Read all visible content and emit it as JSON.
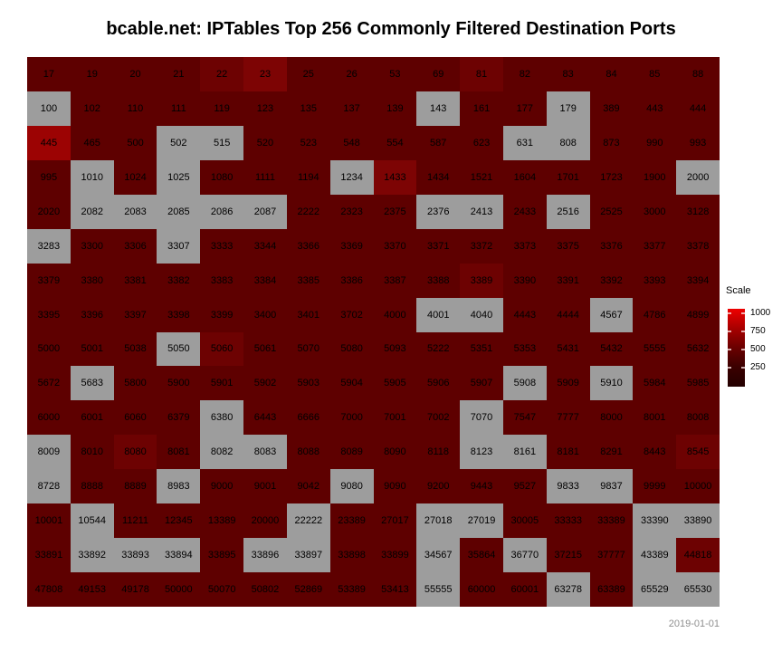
{
  "title": "bcable.net: IPTables Top 256 Commonly Filtered Destination Ports",
  "footer": {
    "date": "2019-01-01"
  },
  "legend": {
    "title": "Scale",
    "ticks": [
      "1000",
      "750",
      "500",
      "250"
    ],
    "gradient_stops": [
      "#ee0000",
      "#a80000",
      "#6a0000",
      "#3a0000",
      "#230000"
    ]
  },
  "colors": {
    "g": "#9d9d9d",
    "d": "#5e0000",
    "m": "#6d0202",
    "h": "#7d0404",
    "v": "#9c0303"
  },
  "chart_data": {
    "type": "heatmap",
    "title": "bcable.net: IPTables Top 256 Commonly Filtered Destination Ports",
    "grid": [
      16,
      16
    ],
    "scale_legend": {
      "title": "Scale",
      "tick_values": [
        1000,
        750,
        500,
        250
      ]
    },
    "color_level_meaning": {
      "g": "gray tile (no scale color)",
      "d": "dark red (low count ~100-250)",
      "m": "medium dark red (~300)",
      "h": "brighter red (~450)",
      "v": "bright red (~1000)"
    },
    "cells": [
      [
        "17",
        "d"
      ],
      [
        "19",
        "d"
      ],
      [
        "20",
        "d"
      ],
      [
        "21",
        "d"
      ],
      [
        "22",
        "m"
      ],
      [
        "23",
        "h"
      ],
      [
        "25",
        "d"
      ],
      [
        "26",
        "d"
      ],
      [
        "53",
        "d"
      ],
      [
        "69",
        "d"
      ],
      [
        "81",
        "m"
      ],
      [
        "82",
        "d"
      ],
      [
        "83",
        "d"
      ],
      [
        "84",
        "d"
      ],
      [
        "85",
        "d"
      ],
      [
        "88",
        "d"
      ],
      [
        "100",
        "g"
      ],
      [
        "102",
        "d"
      ],
      [
        "110",
        "d"
      ],
      [
        "111",
        "d"
      ],
      [
        "119",
        "d"
      ],
      [
        "123",
        "d"
      ],
      [
        "135",
        "d"
      ],
      [
        "137",
        "d"
      ],
      [
        "139",
        "d"
      ],
      [
        "143",
        "g"
      ],
      [
        "161",
        "d"
      ],
      [
        "177",
        "d"
      ],
      [
        "179",
        "g"
      ],
      [
        "389",
        "d"
      ],
      [
        "443",
        "d"
      ],
      [
        "444",
        "d"
      ],
      [
        "445",
        "v"
      ],
      [
        "465",
        "d"
      ],
      [
        "500",
        "d"
      ],
      [
        "502",
        "g"
      ],
      [
        "515",
        "g"
      ],
      [
        "520",
        "d"
      ],
      [
        "523",
        "d"
      ],
      [
        "548",
        "d"
      ],
      [
        "554",
        "d"
      ],
      [
        "587",
        "d"
      ],
      [
        "623",
        "d"
      ],
      [
        "631",
        "g"
      ],
      [
        "808",
        "g"
      ],
      [
        "873",
        "d"
      ],
      [
        "990",
        "d"
      ],
      [
        "993",
        "d"
      ],
      [
        "995",
        "d"
      ],
      [
        "1010",
        "g"
      ],
      [
        "1024",
        "d"
      ],
      [
        "1025",
        "g"
      ],
      [
        "1080",
        "d"
      ],
      [
        "1111",
        "d"
      ],
      [
        "1194",
        "d"
      ],
      [
        "1234",
        "g"
      ],
      [
        "1433",
        "h"
      ],
      [
        "1434",
        "d"
      ],
      [
        "1521",
        "d"
      ],
      [
        "1604",
        "d"
      ],
      [
        "1701",
        "d"
      ],
      [
        "1723",
        "d"
      ],
      [
        "1900",
        "d"
      ],
      [
        "2000",
        "g"
      ],
      [
        "2020",
        "d"
      ],
      [
        "2082",
        "g"
      ],
      [
        "2083",
        "g"
      ],
      [
        "2085",
        "g"
      ],
      [
        "2086",
        "g"
      ],
      [
        "2087",
        "g"
      ],
      [
        "2222",
        "d"
      ],
      [
        "2323",
        "d"
      ],
      [
        "2375",
        "d"
      ],
      [
        "2376",
        "g"
      ],
      [
        "2413",
        "g"
      ],
      [
        "2433",
        "d"
      ],
      [
        "2516",
        "g"
      ],
      [
        "2525",
        "d"
      ],
      [
        "3000",
        "d"
      ],
      [
        "3128",
        "d"
      ],
      [
        "3283",
        "g"
      ],
      [
        "3300",
        "d"
      ],
      [
        "3306",
        "d"
      ],
      [
        "3307",
        "g"
      ],
      [
        "3333",
        "d"
      ],
      [
        "3344",
        "d"
      ],
      [
        "3366",
        "d"
      ],
      [
        "3369",
        "d"
      ],
      [
        "3370",
        "d"
      ],
      [
        "3371",
        "d"
      ],
      [
        "3372",
        "d"
      ],
      [
        "3373",
        "d"
      ],
      [
        "3375",
        "d"
      ],
      [
        "3376",
        "d"
      ],
      [
        "3377",
        "d"
      ],
      [
        "3378",
        "d"
      ],
      [
        "3379",
        "d"
      ],
      [
        "3380",
        "d"
      ],
      [
        "3381",
        "d"
      ],
      [
        "3382",
        "d"
      ],
      [
        "3383",
        "d"
      ],
      [
        "3384",
        "d"
      ],
      [
        "3385",
        "d"
      ],
      [
        "3386",
        "d"
      ],
      [
        "3387",
        "d"
      ],
      [
        "3388",
        "d"
      ],
      [
        "3389",
        "m"
      ],
      [
        "3390",
        "d"
      ],
      [
        "3391",
        "d"
      ],
      [
        "3392",
        "d"
      ],
      [
        "3393",
        "d"
      ],
      [
        "3394",
        "d"
      ],
      [
        "3395",
        "d"
      ],
      [
        "3396",
        "d"
      ],
      [
        "3397",
        "d"
      ],
      [
        "3398",
        "d"
      ],
      [
        "3399",
        "d"
      ],
      [
        "3400",
        "d"
      ],
      [
        "3401",
        "d"
      ],
      [
        "3702",
        "d"
      ],
      [
        "4000",
        "d"
      ],
      [
        "4001",
        "g"
      ],
      [
        "4040",
        "g"
      ],
      [
        "4443",
        "d"
      ],
      [
        "4444",
        "d"
      ],
      [
        "4567",
        "g"
      ],
      [
        "4786",
        "d"
      ],
      [
        "4899",
        "d"
      ],
      [
        "5000",
        "d"
      ],
      [
        "5001",
        "d"
      ],
      [
        "5038",
        "d"
      ],
      [
        "5050",
        "g"
      ],
      [
        "5060",
        "m"
      ],
      [
        "5061",
        "d"
      ],
      [
        "5070",
        "d"
      ],
      [
        "5080",
        "d"
      ],
      [
        "5093",
        "d"
      ],
      [
        "5222",
        "d"
      ],
      [
        "5351",
        "d"
      ],
      [
        "5353",
        "d"
      ],
      [
        "5431",
        "d"
      ],
      [
        "5432",
        "d"
      ],
      [
        "5555",
        "d"
      ],
      [
        "5632",
        "d"
      ],
      [
        "5672",
        "d"
      ],
      [
        "5683",
        "g"
      ],
      [
        "5800",
        "d"
      ],
      [
        "5900",
        "d"
      ],
      [
        "5901",
        "d"
      ],
      [
        "5902",
        "d"
      ],
      [
        "5903",
        "d"
      ],
      [
        "5904",
        "d"
      ],
      [
        "5905",
        "d"
      ],
      [
        "5906",
        "d"
      ],
      [
        "5907",
        "d"
      ],
      [
        "5908",
        "g"
      ],
      [
        "5909",
        "d"
      ],
      [
        "5910",
        "g"
      ],
      [
        "5984",
        "d"
      ],
      [
        "5985",
        "d"
      ],
      [
        "6000",
        "d"
      ],
      [
        "6001",
        "d"
      ],
      [
        "6060",
        "d"
      ],
      [
        "6379",
        "d"
      ],
      [
        "6380",
        "g"
      ],
      [
        "6443",
        "d"
      ],
      [
        "6666",
        "d"
      ],
      [
        "7000",
        "d"
      ],
      [
        "7001",
        "d"
      ],
      [
        "7002",
        "d"
      ],
      [
        "7070",
        "g"
      ],
      [
        "7547",
        "d"
      ],
      [
        "7777",
        "d"
      ],
      [
        "8000",
        "d"
      ],
      [
        "8001",
        "d"
      ],
      [
        "8008",
        "d"
      ],
      [
        "8009",
        "g"
      ],
      [
        "8010",
        "d"
      ],
      [
        "8080",
        "m"
      ],
      [
        "8081",
        "d"
      ],
      [
        "8082",
        "g"
      ],
      [
        "8083",
        "g"
      ],
      [
        "8088",
        "d"
      ],
      [
        "8089",
        "d"
      ],
      [
        "8090",
        "d"
      ],
      [
        "8118",
        "d"
      ],
      [
        "8123",
        "g"
      ],
      [
        "8161",
        "g"
      ],
      [
        "8181",
        "d"
      ],
      [
        "8291",
        "d"
      ],
      [
        "8443",
        "d"
      ],
      [
        "8545",
        "m"
      ],
      [
        "8728",
        "g"
      ],
      [
        "8888",
        "d"
      ],
      [
        "8889",
        "d"
      ],
      [
        "8983",
        "g"
      ],
      [
        "9000",
        "d"
      ],
      [
        "9001",
        "d"
      ],
      [
        "9042",
        "d"
      ],
      [
        "9080",
        "g"
      ],
      [
        "9090",
        "d"
      ],
      [
        "9200",
        "d"
      ],
      [
        "9443",
        "d"
      ],
      [
        "9527",
        "d"
      ],
      [
        "9833",
        "g"
      ],
      [
        "9837",
        "g"
      ],
      [
        "9999",
        "d"
      ],
      [
        "10000",
        "d"
      ],
      [
        "10001",
        "d"
      ],
      [
        "10544",
        "g"
      ],
      [
        "11211",
        "d"
      ],
      [
        "12345",
        "d"
      ],
      [
        "13389",
        "d"
      ],
      [
        "20000",
        "d"
      ],
      [
        "22222",
        "g"
      ],
      [
        "23389",
        "d"
      ],
      [
        "27017",
        "d"
      ],
      [
        "27018",
        "g"
      ],
      [
        "27019",
        "g"
      ],
      [
        "30005",
        "d"
      ],
      [
        "33333",
        "d"
      ],
      [
        "33389",
        "d"
      ],
      [
        "33390",
        "g"
      ],
      [
        "33890",
        "g"
      ],
      [
        "33891",
        "d"
      ],
      [
        "33892",
        "g"
      ],
      [
        "33893",
        "g"
      ],
      [
        "33894",
        "g"
      ],
      [
        "33895",
        "d"
      ],
      [
        "33896",
        "g"
      ],
      [
        "33897",
        "g"
      ],
      [
        "33898",
        "d"
      ],
      [
        "33899",
        "d"
      ],
      [
        "34567",
        "g"
      ],
      [
        "35864",
        "d"
      ],
      [
        "36770",
        "g"
      ],
      [
        "37215",
        "d"
      ],
      [
        "37777",
        "d"
      ],
      [
        "43389",
        "g"
      ],
      [
        "44818",
        "m"
      ],
      [
        "47808",
        "d"
      ],
      [
        "49153",
        "d"
      ],
      [
        "49178",
        "d"
      ],
      [
        "50000",
        "d"
      ],
      [
        "50070",
        "d"
      ],
      [
        "50802",
        "d"
      ],
      [
        "52869",
        "d"
      ],
      [
        "53389",
        "d"
      ],
      [
        "53413",
        "d"
      ],
      [
        "55555",
        "g"
      ],
      [
        "60000",
        "d"
      ],
      [
        "60001",
        "d"
      ],
      [
        "63278",
        "g"
      ],
      [
        "63389",
        "d"
      ],
      [
        "65529",
        "g"
      ],
      [
        "65530",
        "g"
      ]
    ]
  }
}
